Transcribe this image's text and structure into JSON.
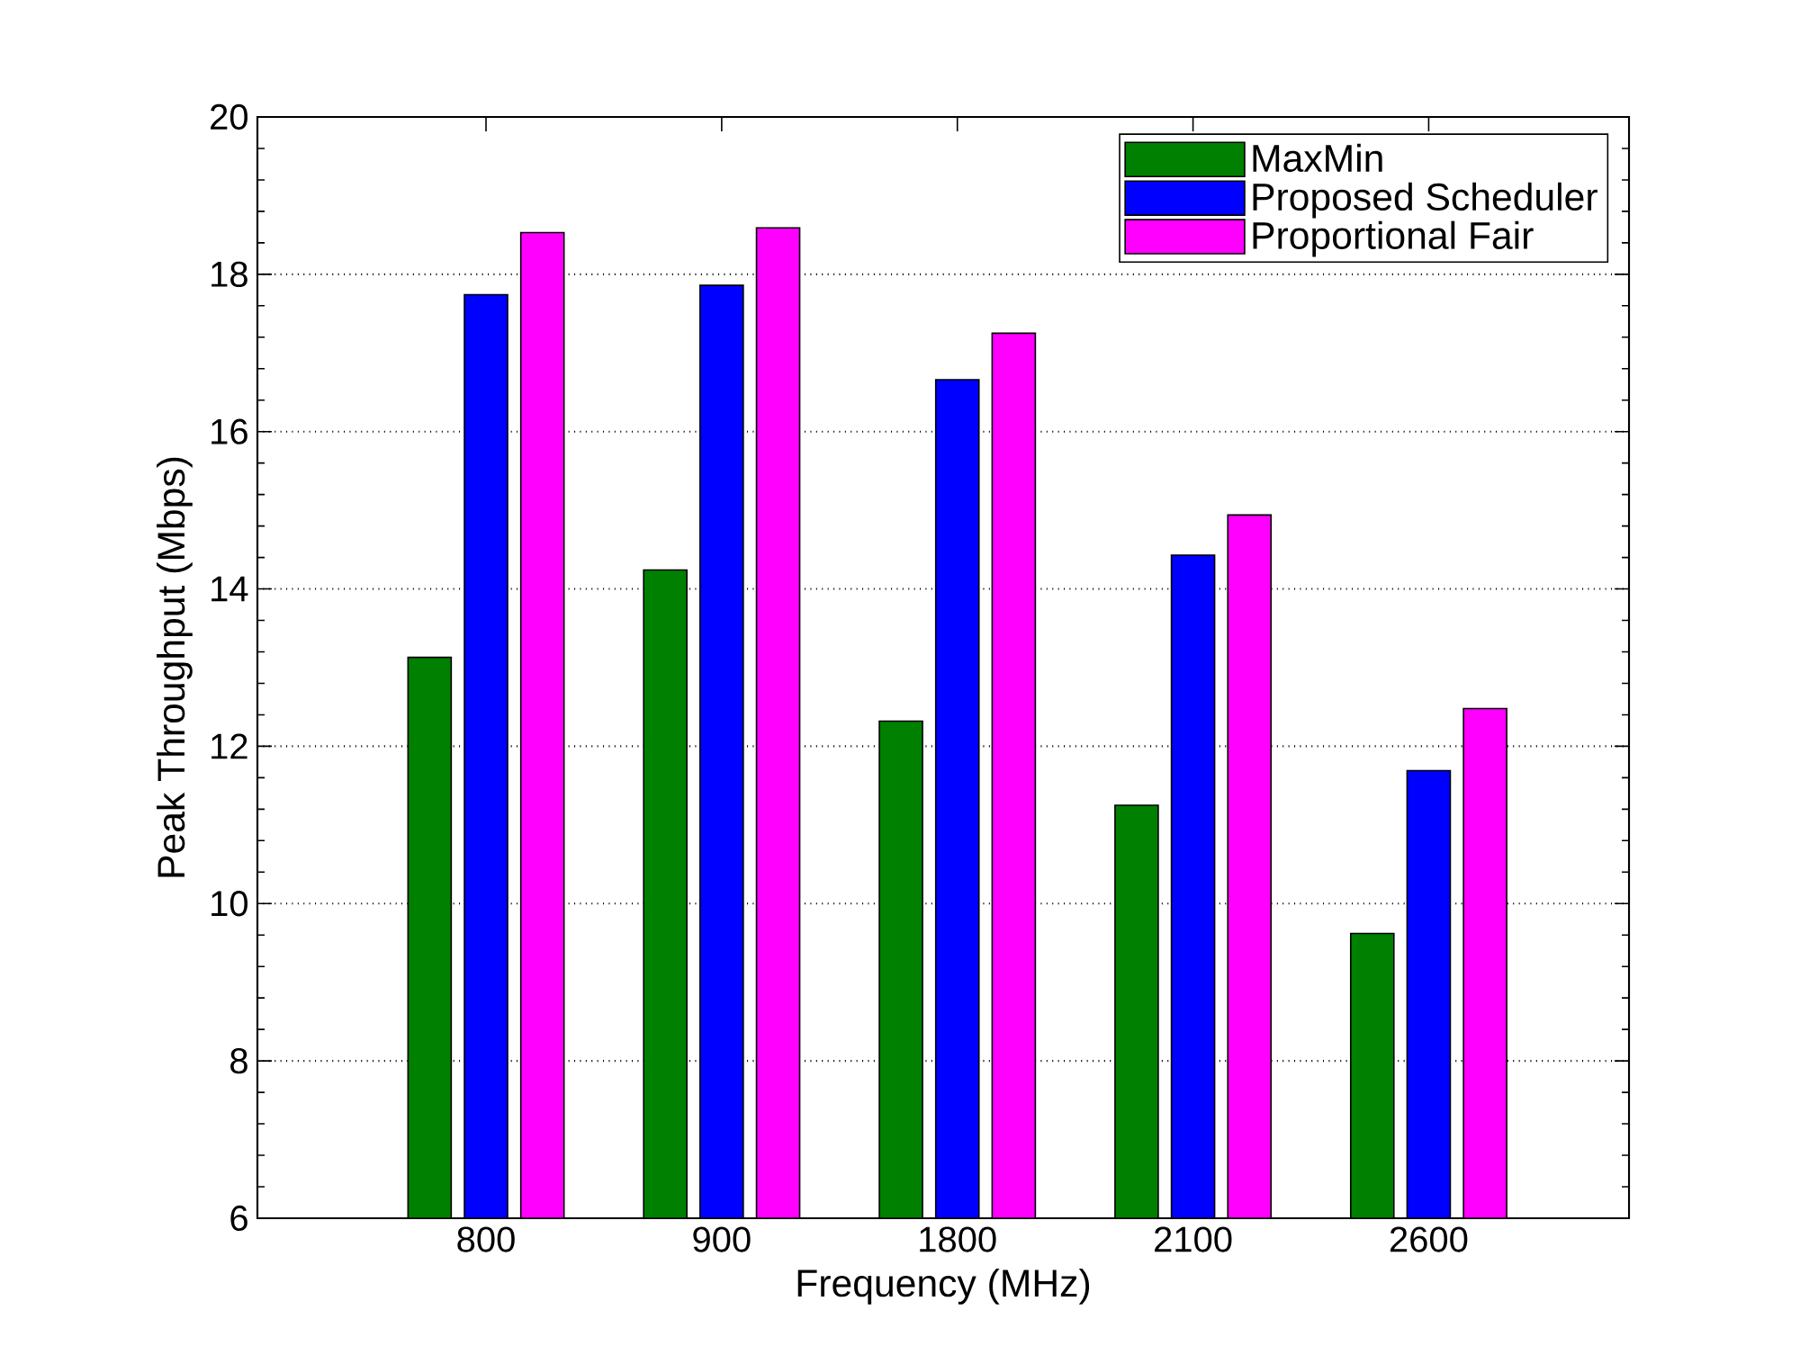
{
  "chart_data": {
    "type": "bar",
    "xlabel": "Frequency (MHz)",
    "ylabel": "Peak Throughput (Mbps)",
    "categories": [
      "800",
      "900",
      "1800",
      "2100",
      "2600"
    ],
    "series": [
      {
        "name": "MaxMin",
        "color": "#008000",
        "values": [
          13.13,
          14.24,
          12.32,
          11.25,
          9.62
        ]
      },
      {
        "name": "Proposed Scheduler",
        "color": "#0000ff",
        "values": [
          17.74,
          17.86,
          16.66,
          14.43,
          11.69
        ]
      },
      {
        "name": "Proportional Fair",
        "color": "#ff00ff",
        "values": [
          18.53,
          18.59,
          17.25,
          14.94,
          12.48
        ]
      }
    ],
    "ylim": [
      6,
      20
    ],
    "yticks": [
      6,
      8,
      10,
      12,
      14,
      16,
      18,
      20
    ],
    "grid": "y",
    "legend": "top right"
  }
}
